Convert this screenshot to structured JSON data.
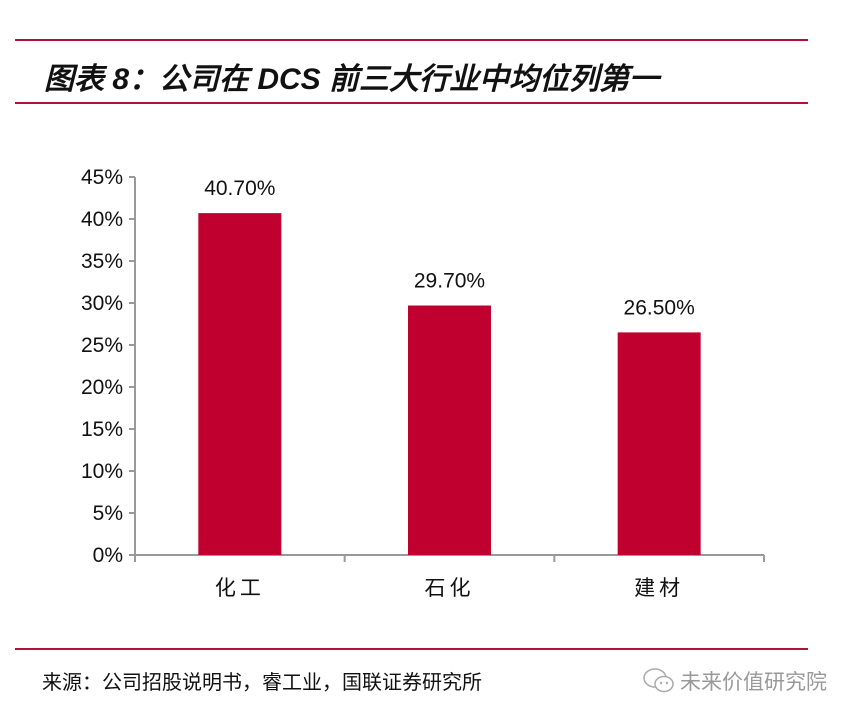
{
  "title": "图表 8：公司在 DCS 前三大行业中均位列第一",
  "source": "来源：公司招股说明书，睿工业，国联证券研究所",
  "watermark": {
    "text": "未来价值研究院",
    "icon": "wechat-icon"
  },
  "colors": {
    "bar": "#c0002f",
    "rule": "#b0103a",
    "axis": "#999999"
  },
  "chart_data": {
    "type": "bar",
    "categories": [
      "化工",
      "石化",
      "建材"
    ],
    "values": [
      40.7,
      29.7,
      26.5
    ],
    "data_labels": [
      "40.70%",
      "29.70%",
      "26.50%"
    ],
    "yticks": [
      "0%",
      "5%",
      "10%",
      "15%",
      "20%",
      "25%",
      "30%",
      "35%",
      "40%",
      "45%"
    ],
    "ylim": [
      0,
      45
    ],
    "unit": "%",
    "grid": false,
    "legend": "none"
  }
}
